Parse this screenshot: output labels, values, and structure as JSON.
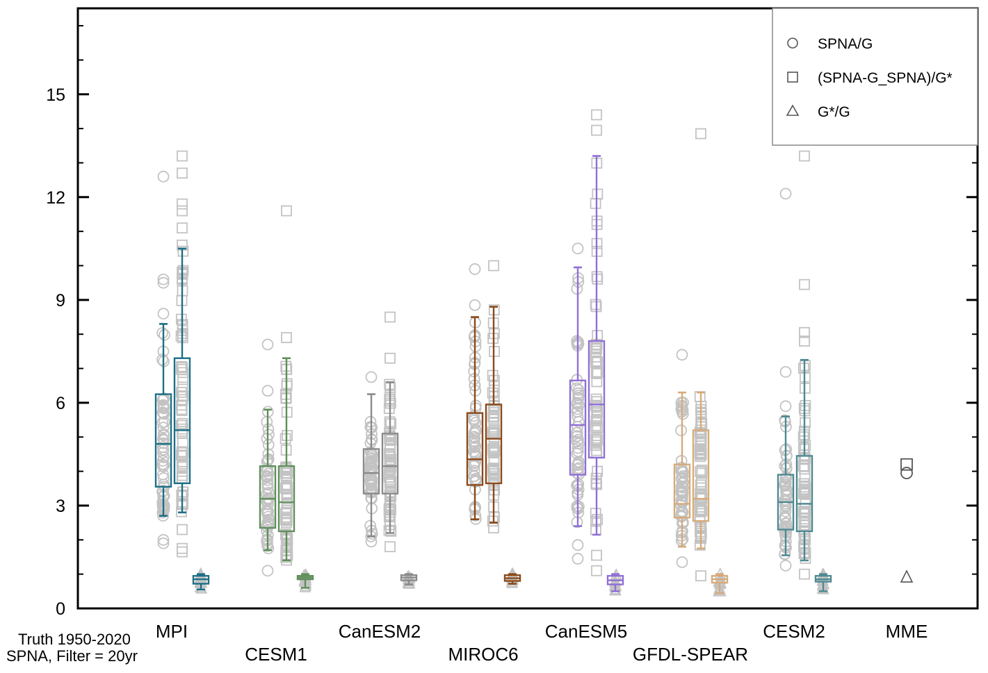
{
  "chart_data": {
    "type": "box",
    "title": "",
    "xlabel": "",
    "ylabel": "",
    "ylim": [
      0,
      17.5
    ],
    "yticks": [
      0,
      3,
      6,
      9,
      12,
      15
    ],
    "grid": false,
    "annotation": [
      "Truth 1950-2020",
      "SPNA, Filter = 20yr"
    ],
    "legend": {
      "placement": "top-right",
      "entries": [
        {
          "marker": "circle",
          "label": "SPNA/G"
        },
        {
          "marker": "square",
          "label": "(SPNA-G_SPNA)/G*"
        },
        {
          "marker": "triangle",
          "label": "G*/G"
        }
      ]
    },
    "colors": {
      "points": "#c3c3c3",
      "mme": "#555555"
    },
    "models": [
      {
        "name": "MPI",
        "label_row": 0,
        "color": "#1d6f87",
        "spna_g": {
          "whisker_low": 2.7,
          "q1": 3.55,
          "median": 4.8,
          "q3": 6.25,
          "whisker_high": 8.3,
          "outliers": [
            1.9,
            2.0,
            8.6,
            9.5,
            9.6,
            12.6
          ]
        },
        "ratio": {
          "whisker_low": 2.8,
          "q1": 3.65,
          "median": 5.2,
          "q3": 7.3,
          "whisker_high": 10.5,
          "outliers": [
            1.65,
            1.75,
            2.3,
            10.6,
            11.1,
            11.6,
            11.8,
            12.7,
            13.2
          ]
        },
        "g_star": {
          "whisker_low": 0.55,
          "q1": 0.72,
          "median": 0.85,
          "q3": 0.95,
          "whisker_high": 1.0
        }
      },
      {
        "name": "CESM1",
        "label_row": 1,
        "color": "#5f8f5a",
        "spna_g": {
          "whisker_low": 1.7,
          "q1": 2.35,
          "median": 3.2,
          "q3": 4.15,
          "whisker_high": 5.8,
          "outliers": [
            1.1,
            6.35,
            7.7
          ]
        },
        "ratio": {
          "whisker_low": 1.4,
          "q1": 2.25,
          "median": 3.1,
          "q3": 4.15,
          "whisker_high": 7.3,
          "outliers": [
            7.9,
            11.6
          ]
        },
        "g_star": {
          "whisker_low": 0.6,
          "q1": 0.85,
          "median": 0.9,
          "q3": 0.95,
          "whisker_high": 1.0
        }
      },
      {
        "name": "CanESM2",
        "label_row": 0,
        "color": "#8a8a8a",
        "spna_g": {
          "whisker_low": 2.1,
          "q1": 3.35,
          "median": 3.95,
          "q3": 4.65,
          "whisker_high": 6.25,
          "outliers": [
            1.95,
            6.75
          ]
        },
        "ratio": {
          "whisker_low": 2.2,
          "q1": 3.35,
          "median": 4.15,
          "q3": 5.1,
          "whisker_high": 6.6,
          "outliers": [
            1.8,
            7.3,
            8.5
          ]
        },
        "g_star": {
          "whisker_low": 0.7,
          "q1": 0.82,
          "median": 0.9,
          "q3": 0.97,
          "whisker_high": 1.0
        }
      },
      {
        "name": "MIROC6",
        "label_row": 1,
        "color": "#8a4a1b",
        "spna_g": {
          "whisker_low": 2.6,
          "q1": 3.6,
          "median": 4.35,
          "q3": 5.7,
          "whisker_high": 8.5,
          "outliers": [
            8.85,
            9.9
          ]
        },
        "ratio": {
          "whisker_low": 2.5,
          "q1": 3.65,
          "median": 4.95,
          "q3": 5.95,
          "whisker_high": 8.8,
          "outliers": [
            2.35,
            10.0
          ]
        },
        "g_star": {
          "whisker_low": 0.72,
          "q1": 0.8,
          "median": 0.88,
          "q3": 0.97,
          "whisker_high": 1.0
        }
      },
      {
        "name": "CanESM5",
        "label_row": 0,
        "color": "#8f6fd6",
        "spna_g": {
          "whisker_low": 2.4,
          "q1": 3.9,
          "median": 5.35,
          "q3": 6.65,
          "whisker_high": 9.95,
          "outliers": [
            1.45,
            1.85,
            10.5
          ]
        },
        "ratio": {
          "whisker_low": 2.15,
          "q1": 4.4,
          "median": 5.95,
          "q3": 7.8,
          "whisker_high": 13.2,
          "outliers": [
            1.1,
            1.55,
            13.95,
            14.4
          ]
        },
        "g_star": {
          "whisker_low": 0.5,
          "q1": 0.7,
          "median": 0.82,
          "q3": 0.95,
          "whisker_high": 1.0
        }
      },
      {
        "name": "GFDL-SPEAR",
        "label_row": 1,
        "color": "#d7aa7a",
        "spna_g": {
          "whisker_low": 1.8,
          "q1": 2.65,
          "median": 3.05,
          "q3": 4.2,
          "whisker_high": 6.3,
          "outliers": [
            1.35,
            7.4
          ]
        },
        "ratio": {
          "whisker_low": 1.75,
          "q1": 2.55,
          "median": 3.2,
          "q3": 5.2,
          "whisker_high": 6.3,
          "outliers": [
            0.95,
            13.85
          ]
        },
        "g_star": {
          "whisker_low": 0.45,
          "q1": 0.75,
          "median": 0.85,
          "q3": 0.95,
          "whisker_high": 1.0
        }
      },
      {
        "name": "CESM2",
        "label_row": 0,
        "color": "#4e8991",
        "spna_g": {
          "whisker_low": 1.55,
          "q1": 2.3,
          "median": 3.1,
          "q3": 3.9,
          "whisker_high": 5.6,
          "outliers": [
            1.25,
            5.9,
            6.9,
            12.1
          ]
        },
        "ratio": {
          "whisker_low": 1.4,
          "q1": 2.25,
          "median": 3.05,
          "q3": 4.45,
          "whisker_high": 7.25,
          "outliers": [
            1.0,
            7.8,
            8.05,
            9.45,
            13.2
          ]
        },
        "g_star": {
          "whisker_low": 0.5,
          "q1": 0.78,
          "median": 0.85,
          "q3": 0.95,
          "whisker_high": 1.0
        }
      },
      {
        "name": "MME",
        "label_row": 0,
        "color": "#555555",
        "points": {
          "spna_g": 3.95,
          "ratio": 4.2,
          "g_star": 0.9
        }
      }
    ]
  }
}
